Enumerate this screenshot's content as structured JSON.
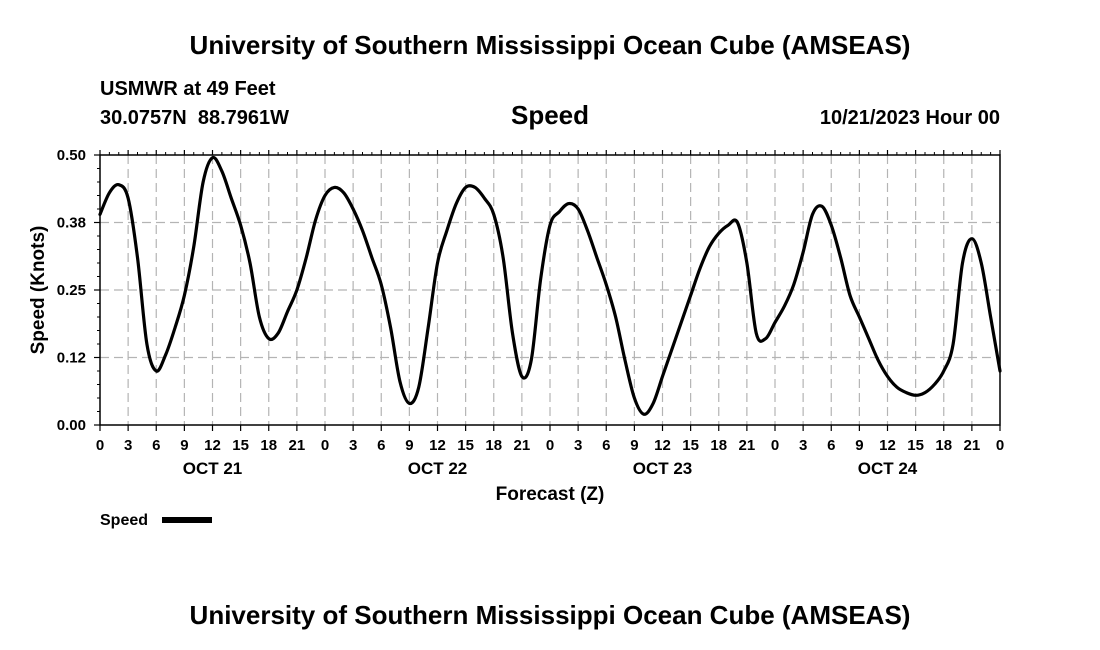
{
  "page": {
    "title": "University of Southern Mississippi Ocean Cube (AMSEAS)",
    "footer_title": "University of Southern Mississippi Ocean Cube (AMSEAS)",
    "station": "USMWR at 49 Feet",
    "coords": "30.0757N  88.7961W",
    "datetime": "10/21/2023 Hour 00"
  },
  "chart_data": {
    "type": "line",
    "title": "Speed",
    "xlabel": "Forecast (Z)",
    "ylabel": "Speed (Knots)",
    "x_unit": "hours from 10/21/2023 00Z",
    "xlim": [
      0,
      96
    ],
    "ylim": [
      0,
      0.5
    ],
    "y_ticks": [
      0.0,
      0.125,
      0.25,
      0.375,
      0.5
    ],
    "y_tick_labels": [
      "0.00",
      "0.12",
      "0.25",
      "0.38",
      "0.50"
    ],
    "x_ticks": [
      0,
      3,
      6,
      9,
      12,
      15,
      18,
      21,
      24,
      27,
      30,
      33,
      36,
      39,
      42,
      45,
      48,
      51,
      54,
      57,
      60,
      63,
      66,
      69,
      72,
      75,
      78,
      81,
      84,
      87,
      90,
      93,
      96
    ],
    "x_tick_labels": [
      "0",
      "3",
      "6",
      "9",
      "12",
      "15",
      "18",
      "21",
      "0",
      "3",
      "6",
      "9",
      "12",
      "15",
      "18",
      "21",
      "0",
      "3",
      "6",
      "9",
      "12",
      "15",
      "18",
      "21",
      "0",
      "3",
      "6",
      "9",
      "12",
      "15",
      "18",
      "21",
      "0"
    ],
    "day_labels": [
      {
        "label": "OCT 21",
        "hour": 12
      },
      {
        "label": "OCT 22",
        "hour": 36
      },
      {
        "label": "OCT 23",
        "hour": 60
      },
      {
        "label": "OCT 24",
        "hour": 84
      }
    ],
    "grid": true,
    "legend": {
      "position": "bottom-left",
      "entries": [
        "Speed"
      ]
    },
    "series": [
      {
        "name": "Speed",
        "x": [
          0,
          1,
          2,
          3,
          4,
          5,
          6,
          7,
          8,
          9,
          10,
          11,
          12,
          13,
          14,
          15,
          16,
          17,
          18,
          19,
          20,
          21,
          22,
          23,
          24,
          25,
          26,
          27,
          28,
          29,
          30,
          31,
          32,
          33,
          34,
          35,
          36,
          37,
          38,
          39,
          40,
          41,
          42,
          43,
          44,
          45,
          46,
          47,
          48,
          49,
          50,
          51,
          52,
          53,
          54,
          55,
          56,
          57,
          58,
          59,
          60,
          61,
          62,
          63,
          64,
          65,
          66,
          67,
          68,
          69,
          70,
          71,
          72,
          73,
          74,
          75,
          76,
          77,
          78,
          79,
          80,
          81,
          82,
          83,
          84,
          85,
          86,
          87,
          88,
          89,
          90,
          91,
          92,
          93,
          94,
          95,
          96
        ],
        "values": [
          0.39,
          0.43,
          0.445,
          0.42,
          0.31,
          0.15,
          0.1,
          0.13,
          0.18,
          0.24,
          0.33,
          0.45,
          0.495,
          0.47,
          0.42,
          0.37,
          0.3,
          0.2,
          0.16,
          0.17,
          0.21,
          0.25,
          0.31,
          0.38,
          0.425,
          0.44,
          0.43,
          0.4,
          0.36,
          0.31,
          0.26,
          0.18,
          0.08,
          0.04,
          0.07,
          0.18,
          0.3,
          0.36,
          0.41,
          0.44,
          0.44,
          0.42,
          0.39,
          0.31,
          0.17,
          0.09,
          0.12,
          0.27,
          0.37,
          0.395,
          0.41,
          0.4,
          0.36,
          0.31,
          0.26,
          0.2,
          0.12,
          0.05,
          0.02,
          0.04,
          0.09,
          0.14,
          0.19,
          0.24,
          0.29,
          0.33,
          0.355,
          0.37,
          0.375,
          0.3,
          0.17,
          0.16,
          0.19,
          0.22,
          0.26,
          0.32,
          0.39,
          0.405,
          0.37,
          0.31,
          0.24,
          0.2,
          0.16,
          0.12,
          0.09,
          0.07,
          0.06,
          0.055,
          0.06,
          0.075,
          0.1,
          0.15,
          0.3,
          0.345,
          0.3,
          0.2,
          0.1
        ]
      }
    ]
  }
}
